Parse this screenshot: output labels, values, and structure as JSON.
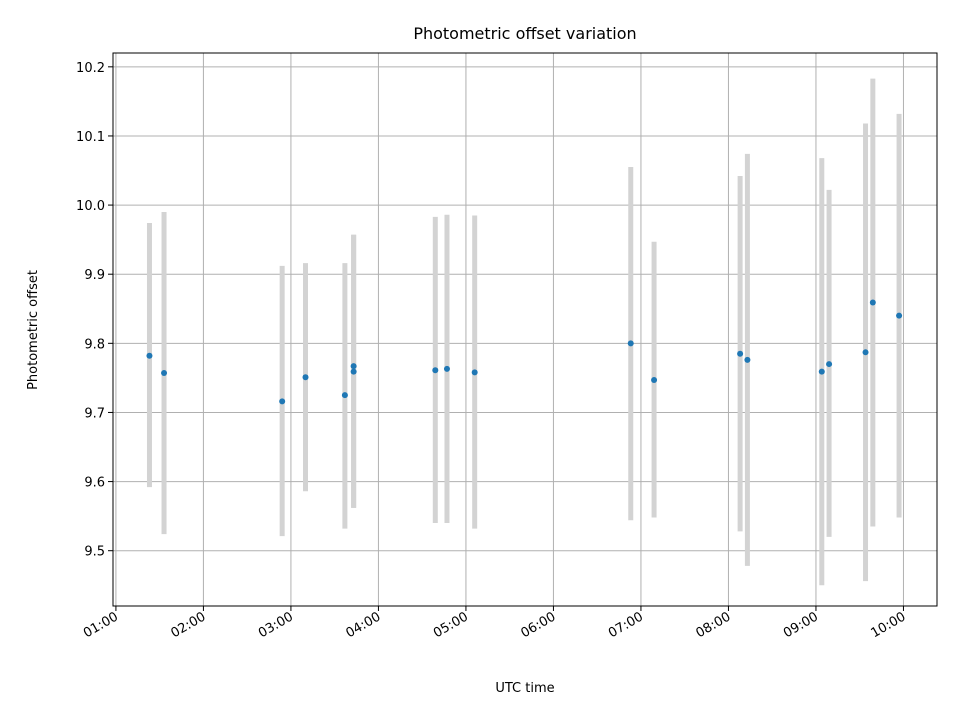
{
  "chart_data": {
    "type": "scatter",
    "title": "Photometric offset variation",
    "xlabel": "UTC time",
    "ylabel": "Photometric offset",
    "x_ticks": [
      "01:00",
      "02:00",
      "03:00",
      "04:00",
      "05:00",
      "06:00",
      "07:00",
      "08:00",
      "09:00",
      "10:00"
    ],
    "y_ticks": [
      "9.5",
      "9.6",
      "9.7",
      "9.8",
      "9.9",
      "10.0",
      "10.1",
      "10.2"
    ],
    "xlim": [
      "00:58",
      "10:23"
    ],
    "ylim": [
      9.42,
      10.22
    ],
    "grid": true,
    "marker_color": "#1f77b4",
    "errorbar_color": "#d3d3d3",
    "points": [
      {
        "time": "01:23",
        "y": 9.782,
        "low": 9.592,
        "high": 9.974
      },
      {
        "time": "01:33",
        "y": 9.757,
        "low": 9.524,
        "high": 9.99
      },
      {
        "time": "02:54",
        "y": 9.716,
        "low": 9.521,
        "high": 9.912
      },
      {
        "time": "03:10",
        "y": 9.751,
        "low": 9.586,
        "high": 9.916
      },
      {
        "time": "03:37",
        "y": 9.725,
        "low": 9.532,
        "high": 9.916
      },
      {
        "time": "03:43",
        "y": 9.759,
        "low": 9.562,
        "high": 9.957
      },
      {
        "time": "03:43",
        "y": 9.767,
        "low": 9.562,
        "high": 9.957
      },
      {
        "time": "04:39",
        "y": 9.761,
        "low": 9.54,
        "high": 9.983
      },
      {
        "time": "04:47",
        "y": 9.763,
        "low": 9.54,
        "high": 9.986
      },
      {
        "time": "05:06",
        "y": 9.758,
        "low": 9.532,
        "high": 9.985
      },
      {
        "time": "06:53",
        "y": 9.8,
        "low": 9.544,
        "high": 10.055
      },
      {
        "time": "07:09",
        "y": 9.747,
        "low": 9.548,
        "high": 9.947
      },
      {
        "time": "08:08",
        "y": 9.785,
        "low": 9.528,
        "high": 10.042
      },
      {
        "time": "08:13",
        "y": 9.776,
        "low": 9.478,
        "high": 10.074
      },
      {
        "time": "09:04",
        "y": 9.759,
        "low": 9.45,
        "high": 10.068
      },
      {
        "time": "09:09",
        "y": 9.77,
        "low": 9.52,
        "high": 10.022
      },
      {
        "time": "09:34",
        "y": 9.787,
        "low": 9.456,
        "high": 10.118
      },
      {
        "time": "09:39",
        "y": 9.859,
        "low": 9.535,
        "high": 10.183
      },
      {
        "time": "09:57",
        "y": 9.84,
        "low": 9.548,
        "high": 10.132
      }
    ]
  }
}
